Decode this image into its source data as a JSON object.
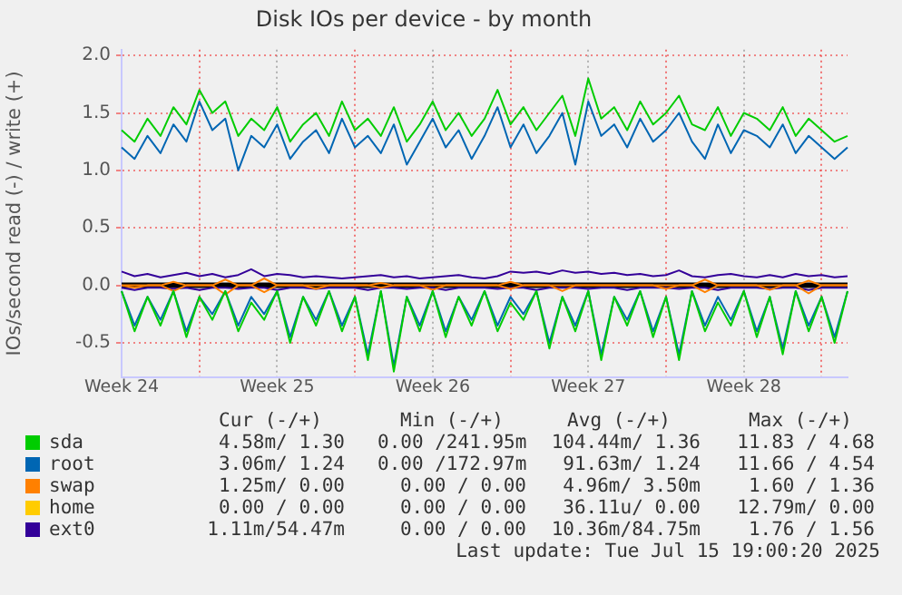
{
  "chart_data": {
    "type": "line",
    "title": "Disk IOs per device - by month",
    "ylabel": "IOs/second read (-) / write (+)",
    "categories": [
      "Week 24",
      null,
      null,
      null,
      null,
      null,
      null,
      null,
      null,
      null,
      null,
      null,
      "Week 25",
      null,
      null,
      null,
      null,
      null,
      null,
      null,
      null,
      null,
      null,
      null,
      "Week 26",
      null,
      null,
      null,
      null,
      null,
      null,
      null,
      null,
      null,
      null,
      null,
      "Week 27",
      null,
      null,
      null,
      null,
      null,
      null,
      null,
      null,
      null,
      null,
      null,
      "Week 28",
      null,
      null,
      null,
      null,
      null,
      null,
      null,
      null
    ],
    "ylim": [
      -0.8,
      2.05
    ],
    "yticks": [
      {
        "value": -0.5,
        "label": "-0.5"
      },
      {
        "value": 0,
        "label": "0.0"
      },
      {
        "value": 0.5,
        "label": "0.5"
      },
      {
        "value": 1,
        "label": "1.0"
      },
      {
        "value": 1.5,
        "label": "1.5"
      },
      {
        "value": 2,
        "label": "2.0"
      }
    ],
    "ref_lines": [
      {
        "axis": "y",
        "value": 0,
        "color": "#000000"
      }
    ],
    "grid": true,
    "legend": "bottom",
    "marker": "none",
    "line_style": "solid",
    "series": [
      {
        "color": "#00cc00",
        "values": [
          -0.05,
          -0.4,
          -0.1,
          -0.35,
          -0.05,
          -0.45,
          -0.1,
          -0.3,
          -0.05,
          -0.4,
          -0.15,
          -0.3,
          -0.05,
          -0.5,
          -0.1,
          -0.35,
          -0.05,
          -0.4,
          -0.1,
          -0.65,
          -0.05,
          -0.75,
          -0.1,
          -0.4,
          -0.05,
          -0.45,
          -0.1,
          -0.35,
          -0.05,
          -0.4,
          -0.15,
          -0.3,
          -0.05,
          -0.55,
          -0.1,
          -0.4,
          -0.05,
          -0.65,
          -0.1,
          -0.35,
          -0.05,
          -0.45,
          -0.1,
          -0.65,
          -0.05,
          -0.4,
          -0.15,
          -0.35,
          -0.05,
          -0.45,
          -0.1,
          -0.6,
          -0.05,
          -0.4,
          -0.1,
          -0.5,
          -0.05
        ]
      },
      {
        "color": "#0066b3",
        "values": [
          -0.05,
          -0.35,
          -0.1,
          -0.3,
          -0.05,
          -0.4,
          -0.1,
          -0.25,
          -0.05,
          -0.35,
          -0.1,
          -0.25,
          -0.05,
          -0.45,
          -0.1,
          -0.3,
          -0.05,
          -0.35,
          -0.1,
          -0.6,
          -0.05,
          -0.7,
          -0.1,
          -0.35,
          -0.05,
          -0.4,
          -0.1,
          -0.3,
          -0.05,
          -0.35,
          -0.1,
          -0.25,
          -0.05,
          -0.5,
          -0.1,
          -0.35,
          -0.05,
          -0.6,
          -0.1,
          -0.3,
          -0.05,
          -0.4,
          -0.1,
          -0.6,
          -0.05,
          -0.35,
          -0.1,
          -0.3,
          -0.05,
          -0.4,
          -0.1,
          -0.55,
          -0.05,
          -0.35,
          -0.1,
          -0.45,
          -0.05
        ]
      },
      {
        "color": "#ff8000",
        "values": [
          0,
          -0.02,
          0,
          0,
          -0.05,
          0,
          0,
          0,
          -0.08,
          0,
          0,
          -0.06,
          0,
          0,
          0,
          -0.03,
          0,
          0,
          0,
          0,
          -0.02,
          0,
          0,
          0,
          -0.04,
          0,
          0,
          0,
          0,
          0,
          -0.03,
          0,
          0,
          0,
          -0.05,
          0,
          0,
          0,
          0,
          0,
          0,
          0,
          -0.03,
          0,
          0,
          -0.06,
          0,
          0,
          0,
          0,
          -0.04,
          0,
          0,
          -0.07,
          0,
          0,
          0
        ]
      },
      {
        "color": "#330099",
        "values": [
          -0.02,
          -0.04,
          -0.02,
          -0.02,
          -0.03,
          -0.02,
          -0.04,
          -0.02,
          -0.02,
          -0.03,
          -0.02,
          -0.02,
          -0.04,
          -0.02,
          -0.02,
          -0.03,
          -0.02,
          -0.02,
          -0.02,
          -0.04,
          -0.02,
          -0.02,
          -0.03,
          -0.02,
          -0.02,
          -0.04,
          -0.02,
          -0.02,
          -0.02,
          -0.03,
          -0.02,
          -0.02,
          -0.04,
          -0.02,
          -0.02,
          -0.02,
          -0.03,
          -0.02,
          -0.02,
          -0.04,
          -0.02,
          -0.02,
          -0.02,
          -0.03,
          -0.02,
          -0.02,
          -0.04,
          -0.02,
          -0.02,
          -0.02,
          -0.03,
          -0.02,
          -0.02,
          -0.04,
          -0.02,
          -0.02,
          -0.02
        ]
      },
      {
        "name": "sda",
        "color": "#00cc00",
        "values": [
          1.35,
          1.25,
          1.45,
          1.3,
          1.55,
          1.4,
          1.7,
          1.5,
          1.6,
          1.3,
          1.45,
          1.35,
          1.55,
          1.25,
          1.4,
          1.5,
          1.3,
          1.6,
          1.35,
          1.45,
          1.3,
          1.55,
          1.25,
          1.4,
          1.6,
          1.35,
          1.5,
          1.3,
          1.45,
          1.7,
          1.4,
          1.55,
          1.35,
          1.5,
          1.65,
          1.3,
          1.8,
          1.45,
          1.55,
          1.35,
          1.6,
          1.4,
          1.5,
          1.65,
          1.4,
          1.35,
          1.55,
          1.3,
          1.5,
          1.45,
          1.35,
          1.55,
          1.3,
          1.45,
          1.35,
          1.25,
          1.3
        ]
      },
      {
        "name": "root",
        "color": "#0066b3",
        "values": [
          1.2,
          1.1,
          1.3,
          1.15,
          1.4,
          1.25,
          1.6,
          1.35,
          1.45,
          1.0,
          1.3,
          1.2,
          1.4,
          1.1,
          1.25,
          1.35,
          1.15,
          1.45,
          1.2,
          1.3,
          1.15,
          1.4,
          1.05,
          1.25,
          1.45,
          1.2,
          1.35,
          1.1,
          1.3,
          1.55,
          1.2,
          1.4,
          1.15,
          1.3,
          1.5,
          1.05,
          1.6,
          1.3,
          1.4,
          1.2,
          1.45,
          1.25,
          1.35,
          1.5,
          1.25,
          1.1,
          1.4,
          1.15,
          1.35,
          1.3,
          1.2,
          1.4,
          1.15,
          1.3,
          1.2,
          1.1,
          1.2
        ]
      },
      {
        "name": "swap",
        "color": "#ff8000",
        "values": [
          0,
          0,
          0,
          0,
          0.03,
          0,
          0,
          0,
          0.05,
          0,
          0,
          0.06,
          0,
          0,
          0,
          0,
          0,
          0,
          0,
          0,
          0.02,
          0,
          0,
          0,
          0,
          0,
          0,
          0,
          0,
          0,
          0.03,
          0,
          0,
          0,
          0,
          0,
          0,
          0,
          0,
          0,
          0,
          0,
          0,
          0,
          0,
          0.05,
          0,
          0,
          0,
          0,
          0,
          0,
          0,
          0.04,
          0,
          0,
          0
        ]
      },
      {
        "name": "home",
        "color": "#ffcc00",
        "values": [
          null,
          null,
          null,
          null,
          null,
          null,
          null,
          null,
          null,
          null,
          null,
          null,
          null,
          null,
          null,
          null,
          null,
          null,
          null,
          null,
          null,
          null,
          null,
          null,
          null,
          null,
          null,
          null,
          null,
          null,
          null,
          null,
          null,
          null,
          null,
          null,
          null,
          null,
          null,
          null,
          null,
          null,
          null,
          null,
          null,
          null,
          null,
          null,
          null,
          null,
          null,
          null,
          null,
          null,
          null,
          null,
          null
        ]
      },
      {
        "name": "ext0",
        "color": "#330099",
        "values": [
          0.12,
          0.08,
          0.1,
          0.07,
          0.09,
          0.11,
          0.08,
          0.1,
          0.07,
          0.09,
          0.14,
          0.08,
          0.1,
          0.09,
          0.07,
          0.08,
          0.07,
          0.06,
          0.07,
          0.08,
          0.09,
          0.07,
          0.08,
          0.06,
          0.07,
          0.08,
          0.09,
          0.07,
          0.06,
          0.08,
          0.12,
          0.11,
          0.12,
          0.1,
          0.13,
          0.11,
          0.12,
          0.1,
          0.11,
          0.09,
          0.1,
          0.08,
          0.09,
          0.13,
          0.08,
          0.07,
          0.09,
          0.1,
          0.08,
          0.07,
          0.09,
          0.07,
          0.1,
          0.08,
          0.09,
          0.07,
          0.08
        ]
      }
    ],
    "annotations": [
      "Cur (-/+)",
      "Min (-/+)",
      "Avg (-/+)",
      "Max (-/+)",
      "4.58m/ 1.30",
      "0.00 /241.95m",
      "104.44m/ 1.36",
      "11.83 / 4.68",
      "3.06m/ 1.24",
      "0.00 /172.97m",
      "91.63m/ 1.24",
      "11.66 / 4.54",
      "1.25m/ 0.00",
      "0.00 / 0.00",
      "4.96m/ 3.50m",
      "1.60 / 1.36",
      "0.00 / 0.00",
      "0.00 / 0.00",
      "36.11u/ 0.00",
      "12.79m/ 0.00",
      "1.11m/54.47m",
      "0.00 / 0.00",
      "10.36m/84.75m",
      "1.76 / 1.56",
      "Last update: Tue Jul 15 19:00:20 2025"
    ]
  }
}
